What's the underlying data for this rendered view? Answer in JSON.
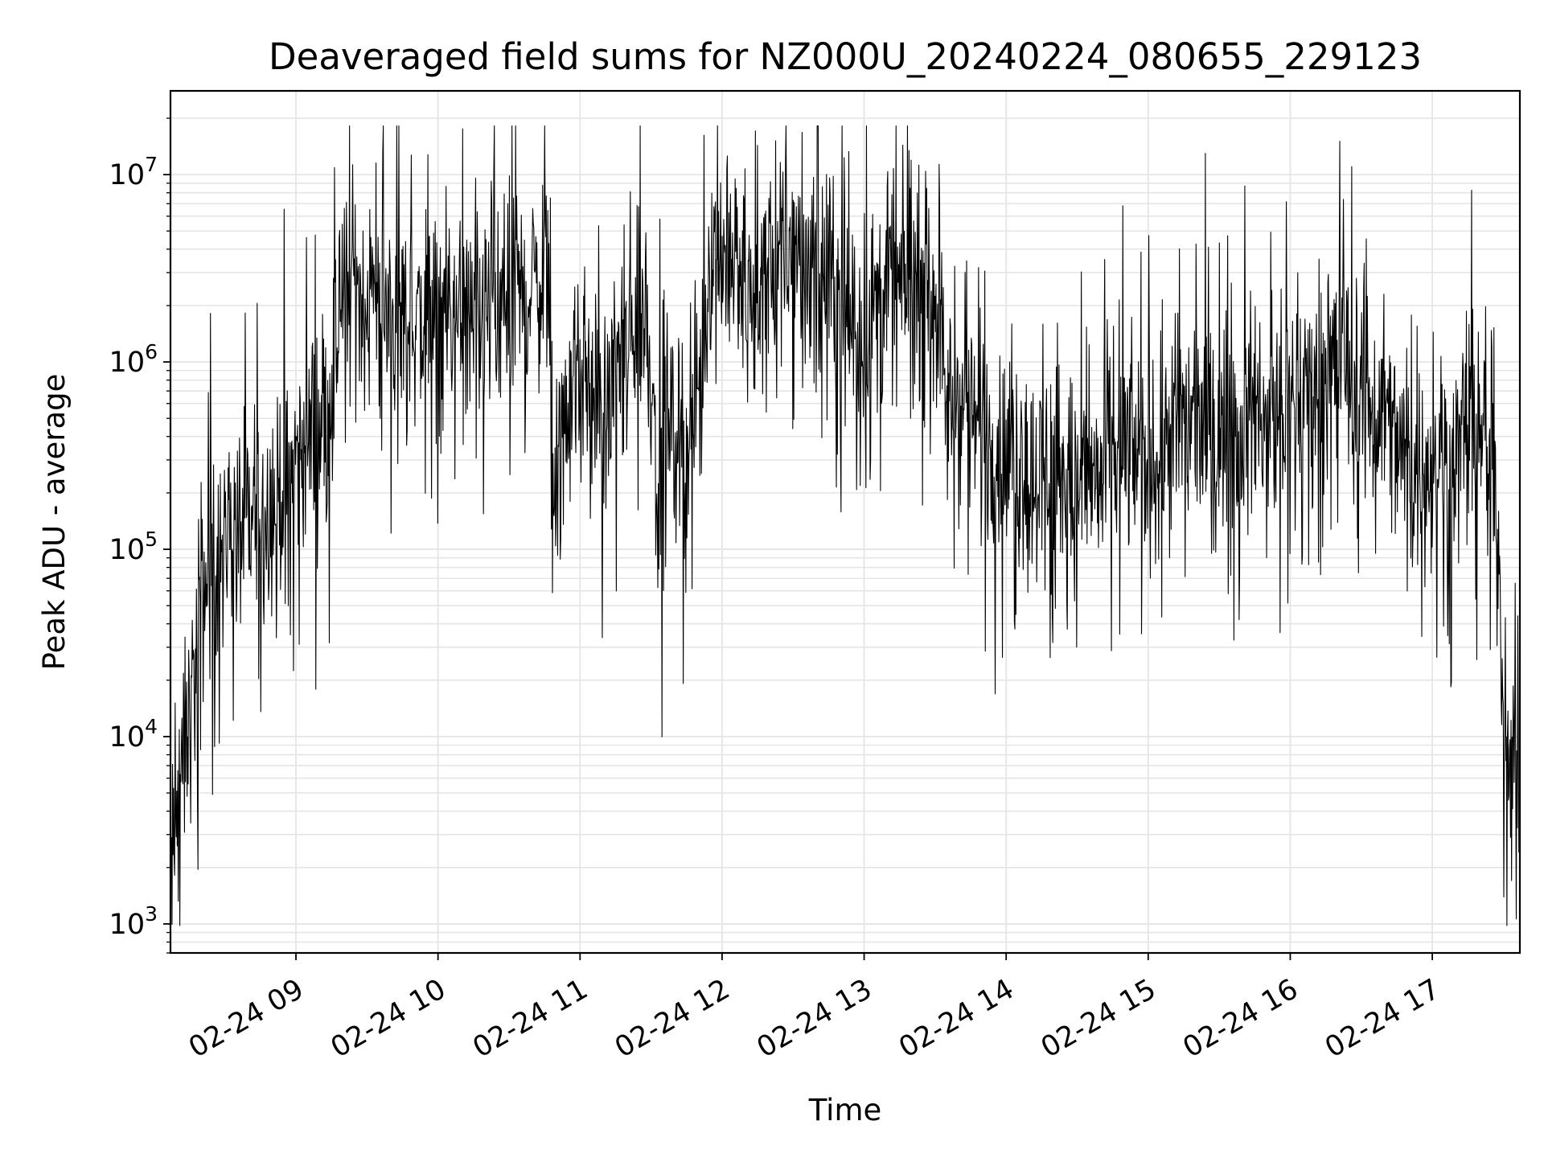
{
  "chart_data": {
    "type": "line",
    "title": "Deaveraged field sums for NZ000U_20240224_080655_229123",
    "xlabel": "Time",
    "ylabel": "Peak ADU - average",
    "yscale": "log",
    "ylim": [
      700,
      28000000
    ],
    "xlim": [
      "2024-02-24 08:07",
      "2024-02-24 17:37"
    ],
    "x_ticks": [
      {
        "value": "2024-02-24 09:00",
        "label": "02-24 09"
      },
      {
        "value": "2024-02-24 10:00",
        "label": "02-24 10"
      },
      {
        "value": "2024-02-24 11:00",
        "label": "02-24 11"
      },
      {
        "value": "2024-02-24 12:00",
        "label": "02-24 12"
      },
      {
        "value": "2024-02-24 13:00",
        "label": "02-24 13"
      },
      {
        "value": "2024-02-24 14:00",
        "label": "02-24 14"
      },
      {
        "value": "2024-02-24 15:00",
        "label": "02-24 15"
      },
      {
        "value": "2024-02-24 16:00",
        "label": "02-24 16"
      },
      {
        "value": "2024-02-24 17:00",
        "label": "02-24 17"
      }
    ],
    "y_ticks": [
      {
        "value": 1000,
        "base": "10",
        "exp": "3"
      },
      {
        "value": 10000,
        "base": "10",
        "exp": "4"
      },
      {
        "value": 100000,
        "base": "10",
        "exp": "5"
      },
      {
        "value": 1000000,
        "base": "10",
        "exp": "6"
      },
      {
        "value": 10000000,
        "base": "10",
        "exp": "7"
      }
    ],
    "grid": true,
    "series_color": "#000000",
    "grid_color": "#e5e5e5",
    "series": [
      {
        "points": [
          [
            "2024-02-24 08:07",
            1500
          ],
          [
            "2024-02-24 08:10",
            4000
          ],
          [
            "2024-02-24 08:13",
            8000
          ],
          [
            "2024-02-24 08:17",
            20000
          ],
          [
            "2024-02-24 08:21",
            60000
          ],
          [
            "2024-02-24 08:25",
            90000
          ],
          [
            "2024-02-24 08:30",
            100000
          ],
          [
            "2024-02-24 08:35",
            120000
          ],
          [
            "2024-02-24 08:40",
            130000
          ],
          [
            "2024-02-24 08:45",
            150000
          ],
          [
            "2024-02-24 08:50",
            180000
          ],
          [
            "2024-02-24 08:55",
            220000
          ],
          [
            "2024-02-24 09:00",
            300000
          ],
          [
            "2024-02-24 09:05",
            350000
          ],
          [
            "2024-02-24 09:10",
            500000
          ],
          [
            "2024-02-24 09:15",
            800000
          ],
          [
            "2024-02-24 09:20",
            2000000
          ],
          [
            "2024-02-24 09:25",
            2500000
          ],
          [
            "2024-02-24 09:30",
            2000000
          ],
          [
            "2024-02-24 09:40",
            1800000
          ],
          [
            "2024-02-24 09:50",
            1700000
          ],
          [
            "2024-02-24 10:00",
            1600000
          ],
          [
            "2024-02-24 10:10",
            1500000
          ],
          [
            "2024-02-24 10:20",
            1500000
          ],
          [
            "2024-02-24 10:30",
            2000000
          ],
          [
            "2024-02-24 10:40",
            2500000
          ],
          [
            "2024-02-24 10:47",
            3000000
          ],
          [
            "2024-02-24 10:48",
            200000
          ],
          [
            "2024-02-24 10:52",
            300000
          ],
          [
            "2024-02-24 10:57",
            700000
          ],
          [
            "2024-02-24 11:05",
            700000
          ],
          [
            "2024-02-24 11:10",
            400000
          ],
          [
            "2024-02-24 11:15",
            900000
          ],
          [
            "2024-02-24 11:22",
            1200000
          ],
          [
            "2024-02-24 11:28",
            2000000
          ],
          [
            "2024-02-24 11:33",
            250000
          ],
          [
            "2024-02-24 11:40",
            450000
          ],
          [
            "2024-02-24 11:48",
            350000
          ],
          [
            "2024-02-24 11:55",
            4000000
          ],
          [
            "2024-02-24 12:05",
            3000000
          ],
          [
            "2024-02-24 12:15",
            2500000
          ],
          [
            "2024-02-24 12:25",
            3500000
          ],
          [
            "2024-02-24 12:35",
            3500000
          ],
          [
            "2024-02-24 12:45",
            3000000
          ],
          [
            "2024-02-24 12:55",
            1500000
          ],
          [
            "2024-02-24 13:05",
            2000000
          ],
          [
            "2024-02-24 13:15",
            2500000
          ],
          [
            "2024-02-24 13:25",
            2500000
          ],
          [
            "2024-02-24 13:30",
            2500000
          ],
          [
            "2024-02-24 13:35",
            600000
          ],
          [
            "2024-02-24 13:45",
            500000
          ],
          [
            "2024-02-24 14:00",
            300000
          ],
          [
            "2024-02-24 14:15",
            250000
          ],
          [
            "2024-02-24 14:30",
            200000
          ],
          [
            "2024-02-24 14:40",
            250000
          ],
          [
            "2024-02-24 14:50",
            350000
          ],
          [
            "2024-02-24 15:00",
            300000
          ],
          [
            "2024-02-24 15:10",
            450000
          ],
          [
            "2024-02-24 15:20",
            500000
          ],
          [
            "2024-02-24 15:30",
            400000
          ],
          [
            "2024-02-24 15:40",
            500000
          ],
          [
            "2024-02-24 15:50",
            500000
          ],
          [
            "2024-02-24 16:00",
            600000
          ],
          [
            "2024-02-24 16:10",
            800000
          ],
          [
            "2024-02-24 16:20",
            1000000
          ],
          [
            "2024-02-24 16:30",
            800000
          ],
          [
            "2024-02-24 16:40",
            450000
          ],
          [
            "2024-02-24 16:50",
            280000
          ],
          [
            "2024-02-24 17:00",
            250000
          ],
          [
            "2024-02-24 17:10",
            350000
          ],
          [
            "2024-02-24 17:20",
            400000
          ],
          [
            "2024-02-24 17:25",
            300000
          ],
          [
            "2024-02-24 17:28",
            100000
          ],
          [
            "2024-02-24 17:30",
            15000
          ],
          [
            "2024-02-24 17:33",
            9000
          ],
          [
            "2024-02-24 17:37",
            6000
          ]
        ]
      }
    ]
  }
}
